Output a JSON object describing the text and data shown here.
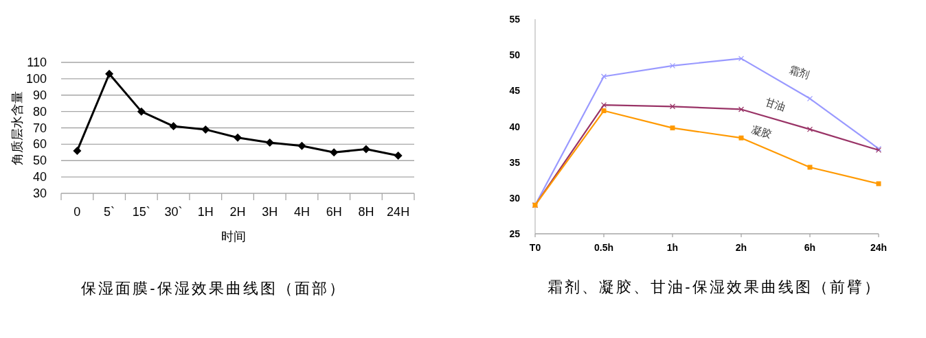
{
  "chart_data": [
    {
      "type": "line",
      "title": "保湿面膜-保湿效果曲线图（面部）",
      "xlabel": "时间",
      "ylabel": "角质层水含量",
      "categories": [
        "0",
        "5`",
        "15`",
        "30`",
        "1H",
        "2H",
        "3H",
        "4H",
        "6H",
        "8H",
        "24H"
      ],
      "series": [
        {
          "color": "#000000",
          "values": [
            56,
            103,
            80,
            71,
            69,
            64,
            61,
            59,
            55,
            57,
            53
          ]
        }
      ],
      "ylim": [
        30,
        110
      ],
      "yticks": [
        30,
        40,
        50,
        60,
        70,
        80,
        90,
        100,
        110
      ],
      "grid": "y",
      "marker": "diamond"
    },
    {
      "type": "line",
      "title": "霜剂、凝胶、甘油-保湿效果曲线图（前臂）",
      "categories": [
        "T0",
        "0.5h",
        "1h",
        "2h",
        "6h",
        "24h"
      ],
      "series": [
        {
          "name": "霜剂",
          "color": "#9999ff",
          "marker": "cross",
          "values": [
            29,
            47.0,
            48.5,
            49.5,
            43.9,
            36.9
          ]
        },
        {
          "name": "甘油",
          "color": "#993366",
          "marker": "cross",
          "values": [
            29,
            43.0,
            42.8,
            42.4,
            39.6,
            36.7
          ]
        },
        {
          "name": "凝胶",
          "color": "#ff9900",
          "marker": "square",
          "values": [
            29,
            42.2,
            39.8,
            38.4,
            34.3,
            32.0
          ]
        }
      ],
      "ylim": [
        25,
        55
      ],
      "yticks": [
        25,
        30,
        35,
        40,
        45,
        50,
        55
      ]
    }
  ]
}
